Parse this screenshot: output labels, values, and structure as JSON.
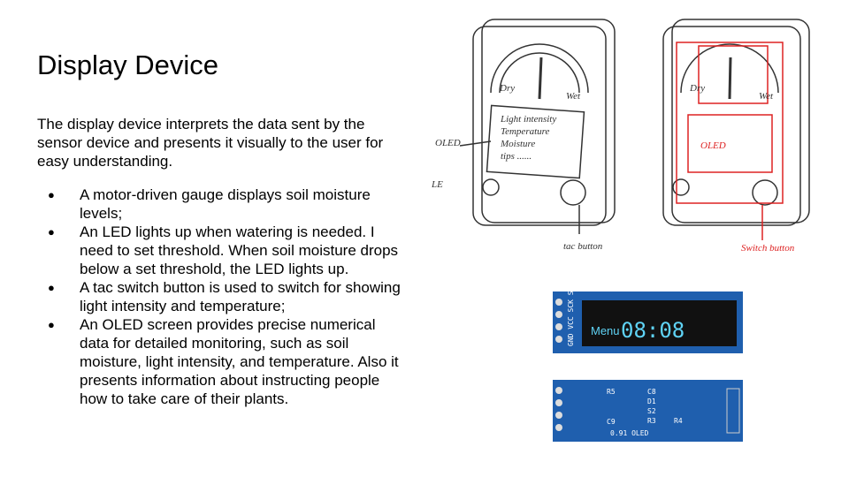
{
  "slide": {
    "title": "Display Device",
    "intro": "The display device interprets the data sent by the sensor device and presents it visually to the user for easy understanding.",
    "bullets": [
      "A motor-driven gauge displays soil moisture levels;",
      "An LED lights up when watering is needed. I need to set threshold. When soil moisture drops below a set threshold, the LED lights up.",
      "A tac switch button is used to switch for showing light intensity and temperature;",
      "An OLED screen provides precise numerical data for detailed monitoring, such as soil moisture, light intensity, and temperature. Also it presents information about instructing people how to take care of their plants."
    ]
  },
  "sketch_left": {
    "dry": "Dry",
    "wet": "Wet",
    "screen_lines": [
      "Light intensity",
      "Temperature",
      "Moisture",
      "tips ......"
    ],
    "oled": "OLED",
    "led": "LE",
    "button": "tac button"
  },
  "sketch_right": {
    "dry": "Dry",
    "wet": "Wet",
    "oled": "OLED",
    "button": "Switch button"
  },
  "oled_photo": {
    "pins": "GND VCC SCK SDA",
    "menu": "Menu",
    "time": "08:08",
    "board_label": "0.91 OLED",
    "components": [
      "R5",
      "C8",
      "D1",
      "S2",
      "R3",
      "R4",
      "C9"
    ]
  }
}
